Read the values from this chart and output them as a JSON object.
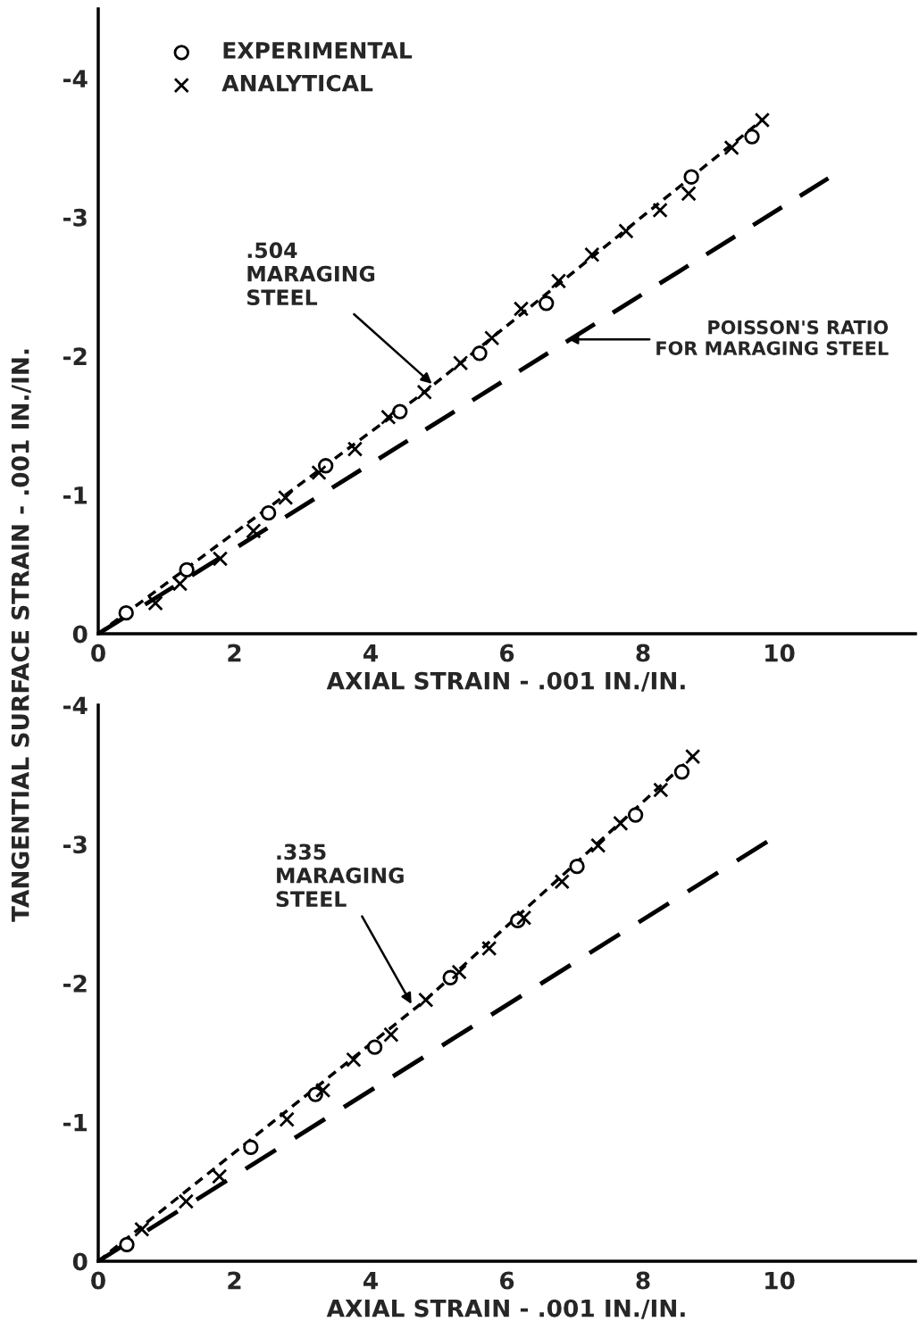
{
  "chart_data": [
    {
      "type": "scatter",
      "xlabel": "AXIAL STRAIN - .001 IN./IN.",
      "ylabel": "TANGENTIAL SURFACE STRAIN - .001 IN./IN.",
      "xlim": [
        0,
        12
      ],
      "ylim": [
        0,
        -4.5
      ],
      "xticks": [
        0,
        2,
        4,
        6,
        8,
        10
      ],
      "yticks": [
        {
          "value": -4,
          "label": "-4"
        },
        {
          "value": -3,
          "label": "-3"
        },
        {
          "value": -2,
          "label": "-2"
        },
        {
          "value": -1,
          "label": "-1"
        },
        0
      ],
      "grid": false,
      "legend": "top left",
      "series": [
        {
          "name": "EXPERIMENTAL",
          "marker": "circle",
          "color": "#000000",
          "x": [
            0.41,
            1.3,
            2.5,
            3.34,
            4.43,
            5.6,
            6.58,
            8.71,
            9.6
          ],
          "values": [
            -0.15,
            -0.46,
            -0.87,
            -1.21,
            -1.6,
            -2.02,
            -2.38,
            -3.29,
            -3.58
          ]
        },
        {
          "name": "ANALYTICAL",
          "marker": "cross",
          "color": "#000000",
          "x": [
            0.84,
            1.2,
            1.79,
            2.28,
            2.75,
            3.24,
            3.77,
            4.26,
            4.79,
            5.32,
            5.78,
            6.21,
            6.76,
            7.25,
            7.75,
            8.25,
            8.67,
            9.3,
            9.75
          ],
          "values": [
            -0.22,
            -0.36,
            -0.54,
            -0.74,
            -0.98,
            -1.16,
            -1.33,
            -1.56,
            -1.74,
            -1.95,
            -2.13,
            -2.34,
            -2.54,
            -2.73,
            -2.9,
            -3.05,
            -3.17,
            -3.5,
            -3.7
          ]
        },
        {
          "type": "line",
          "line_style": "dashed",
          "color": "#000000",
          "x": [
            0,
            4.79,
            9.75
          ],
          "values": [
            0,
            -1.74,
            -3.7
          ]
        },
        {
          "type": "line",
          "line_style": "longdash",
          "color": "#000000",
          "x": [
            0,
            10.72
          ],
          "values": [
            0,
            -3.28
          ]
        }
      ],
      "annotations": [
        {
          "text": ".504\nMARAGING\nSTEEL",
          "x": 4.9,
          "y": -1.8
        },
        {
          "text": "POISSON'S RATIO\nFOR MARAGING STEEL",
          "x": 6.9,
          "y": -2.12
        }
      ]
    },
    {
      "type": "scatter",
      "xlabel": "AXIAL STRAIN - .001 IN./IN.",
      "xlim": [
        0,
        12
      ],
      "ylim": [
        0,
        -4
      ],
      "xticks": [
        0,
        2,
        4,
        6,
        8,
        10
      ],
      "yticks": [
        {
          "value": -4,
          "label": "-4"
        },
        {
          "value": -3,
          "label": "-3"
        },
        {
          "value": -2,
          "label": "-2"
        },
        {
          "value": -1,
          "label": "-1"
        },
        0
      ],
      "grid": false,
      "series": [
        {
          "marker": "circle",
          "color": "#000000",
          "x": [
            0.42,
            2.24,
            3.19,
            4.06,
            5.17,
            6.16,
            7.03,
            7.89,
            8.57
          ],
          "values": [
            -0.12,
            -0.82,
            -1.2,
            -1.54,
            -2.04,
            -2.45,
            -2.84,
            -3.21,
            -3.52
          ]
        },
        {
          "marker": "cross",
          "color": "#000000",
          "x": [
            0.64,
            1.29,
            1.78,
            2.77,
            3.3,
            3.75,
            4.3,
            4.81,
            5.3,
            5.74,
            6.25,
            6.81,
            7.34,
            7.67,
            8.26,
            8.73
          ],
          "values": [
            -0.23,
            -0.43,
            -0.61,
            -1.02,
            -1.23,
            -1.45,
            -1.63,
            -1.88,
            -2.08,
            -2.25,
            -2.47,
            -2.73,
            -2.99,
            -3.15,
            -3.39,
            -3.63
          ]
        },
        {
          "type": "line",
          "line_style": "dashed",
          "color": "#000000",
          "x": [
            0,
            4.81,
            8.73
          ],
          "values": [
            0,
            -1.88,
            -3.63
          ]
        },
        {
          "type": "line",
          "line_style": "longdash",
          "color": "#000000",
          "x": [
            0,
            9.83
          ],
          "values": [
            0,
            -3.02
          ]
        }
      ],
      "annotations": [
        {
          "text": ".335\nMARAGING\nSTEEL",
          "x": 4.6,
          "y": -1.85
        }
      ]
    }
  ]
}
